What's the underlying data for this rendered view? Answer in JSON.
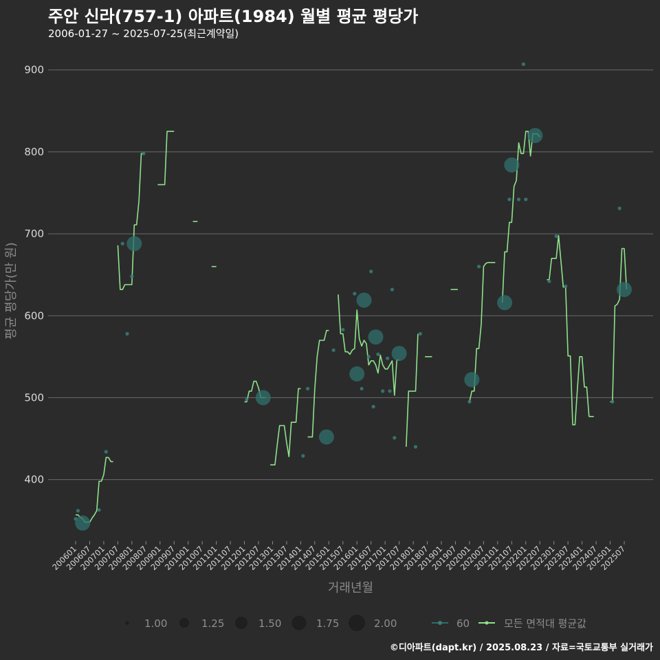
{
  "header": {
    "title": "주안 신라(757-1) 아파트(1984) 월별 평균 평당가",
    "subtitle": "2006-01-27 ~ 2025-07-25(최근계약일)"
  },
  "footer": {
    "credit": "©디아파트(dapt.kr) / 2025.08.23 / 자료=국토교통부 실거래가"
  },
  "colors": {
    "background": "#2b2b2c",
    "grid": "#6b6b6b",
    "line": "#8fe28a",
    "bubble": "#2f6e6a",
    "point": "#3b7d78"
  },
  "chart_data": {
    "type": "line",
    "title": "주안 신라(757-1) 아파트(1984) 월별 평균 평당가",
    "xlabel": "거래년월",
    "ylabel": "평균 평당가(만 원)",
    "ylim": [
      325,
      935
    ],
    "y_ticks": [
      400,
      500,
      600,
      700,
      800,
      900
    ],
    "x_ticks": [
      "200601",
      "200607",
      "200701",
      "200707",
      "200801",
      "200807",
      "200901",
      "200907",
      "201001",
      "201007",
      "201101",
      "201107",
      "201201",
      "201207",
      "201301",
      "201307",
      "201401",
      "201407",
      "201501",
      "201507",
      "201601",
      "201607",
      "201701",
      "201707",
      "201801",
      "201807",
      "201901",
      "201907",
      "202001",
      "202007",
      "202101",
      "202107",
      "202201",
      "202207",
      "202301",
      "202307",
      "202401",
      "202407",
      "202501",
      "202507"
    ],
    "size_legend": {
      "title": "",
      "entries": [
        "1.00",
        "1.25",
        "1.50",
        "1.75",
        "2.00"
      ]
    },
    "series": [
      {
        "name": "60",
        "kind": "bubble",
        "points": [
          {
            "x": "200601",
            "y": 352,
            "n": 1
          },
          {
            "x": "200602",
            "y": 362,
            "n": 1
          },
          {
            "x": "200604",
            "y": 347,
            "n": 2
          },
          {
            "x": "200611",
            "y": 363,
            "n": 1
          },
          {
            "x": "200702",
            "y": 434,
            "n": 1
          },
          {
            "x": "200709",
            "y": 688,
            "n": 1
          },
          {
            "x": "200711",
            "y": 578,
            "n": 1
          },
          {
            "x": "200801",
            "y": 648,
            "n": 1
          },
          {
            "x": "200802",
            "y": 688,
            "n": 2
          },
          {
            "x": "200806",
            "y": 798,
            "n": 1
          },
          {
            "x": "201202",
            "y": 498,
            "n": 1
          },
          {
            "x": "201209",
            "y": 500,
            "n": 2
          },
          {
            "x": "201402",
            "y": 429,
            "n": 1
          },
          {
            "x": "201404",
            "y": 511,
            "n": 1
          },
          {
            "x": "201412",
            "y": 452,
            "n": 2
          },
          {
            "x": "201503",
            "y": 558,
            "n": 1
          },
          {
            "x": "201507",
            "y": 583,
            "n": 1
          },
          {
            "x": "201512",
            "y": 627,
            "n": 1
          },
          {
            "x": "201601",
            "y": 529,
            "n": 2
          },
          {
            "x": "201603",
            "y": 511,
            "n": 1
          },
          {
            "x": "201604",
            "y": 619,
            "n": 2
          },
          {
            "x": "201606",
            "y": 550,
            "n": 1
          },
          {
            "x": "201607",
            "y": 654,
            "n": 1
          },
          {
            "x": "201608",
            "y": 489,
            "n": 1
          },
          {
            "x": "201609",
            "y": 574,
            "n": 2
          },
          {
            "x": "201610",
            "y": 553,
            "n": 1
          },
          {
            "x": "201612",
            "y": 508,
            "n": 1
          },
          {
            "x": "201702",
            "y": 548,
            "n": 1
          },
          {
            "x": "201703",
            "y": 508,
            "n": 1
          },
          {
            "x": "201704",
            "y": 632,
            "n": 1
          },
          {
            "x": "201705",
            "y": 451,
            "n": 1
          },
          {
            "x": "201707",
            "y": 554,
            "n": 2
          },
          {
            "x": "201802",
            "y": 440,
            "n": 1
          },
          {
            "x": "201804",
            "y": 578,
            "n": 1
          },
          {
            "x": "202001",
            "y": 495,
            "n": 1
          },
          {
            "x": "202002",
            "y": 522,
            "n": 2
          },
          {
            "x": "202005",
            "y": 660,
            "n": 1
          },
          {
            "x": "202104",
            "y": 616,
            "n": 2
          },
          {
            "x": "202106",
            "y": 742,
            "n": 1
          },
          {
            "x": "202107",
            "y": 784,
            "n": 2
          },
          {
            "x": "202110",
            "y": 742,
            "n": 1
          },
          {
            "x": "202112",
            "y": 907,
            "n": 1
          },
          {
            "x": "202201",
            "y": 742,
            "n": 1
          },
          {
            "x": "202205",
            "y": 820,
            "n": 2
          },
          {
            "x": "202211",
            "y": 642,
            "n": 1
          },
          {
            "x": "202302",
            "y": 697,
            "n": 1
          },
          {
            "x": "202306",
            "y": 636,
            "n": 1
          },
          {
            "x": "202502",
            "y": 495,
            "n": 1
          },
          {
            "x": "202505",
            "y": 731,
            "n": 1
          },
          {
            "x": "202507",
            "y": 632,
            "n": 2
          }
        ]
      },
      {
        "name": "모든 면적대 평균값",
        "kind": "line",
        "segments": [
          [
            [
              "200601",
              357
            ],
            [
              "200602",
              357
            ],
            [
              "200603",
              354
            ],
            [
              "200604",
              352
            ],
            [
              "200605",
              348
            ],
            [
              "200606",
              348
            ],
            [
              "200607",
              348
            ],
            [
              "200608",
              353
            ],
            [
              "200609",
              357
            ],
            [
              "200610",
              362
            ],
            [
              "200611",
              398
            ],
            [
              "200612",
              398
            ],
            [
              "200701",
              406
            ],
            [
              "200702",
              427
            ],
            [
              "200703",
              427
            ],
            [
              "200704",
              422
            ],
            [
              "200705",
              422
            ]
          ],
          [
            [
              "200707",
              686
            ],
            [
              "200708",
              632
            ],
            [
              "200709",
              632
            ],
            [
              "200710",
              638
            ],
            [
              "200711",
              638
            ],
            [
              "200712",
              638
            ],
            [
              "200801",
              638
            ],
            [
              "200802",
              711
            ],
            [
              "200803",
              711
            ],
            [
              "200804",
              740
            ],
            [
              "200805",
              798
            ],
            [
              "200806",
              798
            ]
          ],
          [
            [
              "200812",
              760
            ],
            [
              "200901",
              760
            ],
            [
              "200902",
              760
            ],
            [
              "200903",
              760
            ],
            [
              "200904",
              825
            ],
            [
              "200905",
              825
            ],
            [
              "200906",
              825
            ],
            [
              "200907",
              825
            ]
          ],
          [
            [
              "201003",
              715
            ],
            [
              "201004",
              715
            ],
            [
              "201005",
              715
            ]
          ],
          [
            [
              "201011",
              660
            ],
            [
              "201012",
              660
            ],
            [
              "201101",
              660
            ]
          ],
          [
            [
              "201201",
              495
            ],
            [
              "201202",
              495
            ],
            [
              "201203",
              508
            ],
            [
              "201204",
              508
            ],
            [
              "201205",
              520
            ],
            [
              "201206",
              520
            ],
            [
              "201207",
              512
            ],
            [
              "201208",
              500
            ],
            [
              "201209",
              500
            ],
            [
              "201210",
              500
            ]
          ],
          [
            [
              "201212",
              418
            ],
            [
              "201301",
              418
            ],
            [
              "201302",
              418
            ],
            [
              "201303",
              443
            ],
            [
              "201304",
              466
            ],
            [
              "201305",
              466
            ],
            [
              "201306",
              466
            ],
            [
              "201307",
              445
            ],
            [
              "201308",
              428
            ],
            [
              "201309",
              470
            ],
            [
              "201310",
              470
            ],
            [
              "201311",
              470
            ],
            [
              "201312",
              511
            ],
            [
              "201401",
              511
            ]
          ],
          [
            [
              "201404",
              452
            ],
            [
              "201405",
              452
            ],
            [
              "201406",
              452
            ],
            [
              "201407",
              510
            ],
            [
              "201408",
              550
            ],
            [
              "201409",
              570
            ],
            [
              "201410",
              570
            ],
            [
              "201411",
              570
            ],
            [
              "201412",
              582
            ],
            [
              "201501",
              582
            ]
          ],
          [
            [
              "201505",
              626
            ],
            [
              "201506",
              578
            ],
            [
              "201507",
              578
            ],
            [
              "201508",
              556
            ],
            [
              "201509",
              556
            ],
            [
              "201510",
              553
            ],
            [
              "201511",
              558
            ],
            [
              "201512",
              560
            ],
            [
              "201601",
              607
            ],
            [
              "201602",
              572
            ],
            [
              "201603",
              563
            ],
            [
              "201604",
              570
            ],
            [
              "201605",
              566
            ],
            [
              "201606",
              540
            ],
            [
              "201607",
              545
            ],
            [
              "201608",
              545
            ],
            [
              "201609",
              540
            ],
            [
              "201610",
              530
            ],
            [
              "201611",
              552
            ],
            [
              "201612",
              540
            ],
            [
              "201701",
              535
            ],
            [
              "201702",
              535
            ],
            [
              "201703",
              540
            ],
            [
              "201704",
              545
            ],
            [
              "201705",
              503
            ],
            [
              "201706",
              546
            ],
            [
              "201707",
              546
            ]
          ],
          [
            [
              "201710",
              440
            ],
            [
              "201711",
              508
            ],
            [
              "201712",
              508
            ],
            [
              "201801",
              508
            ],
            [
              "201802",
              508
            ],
            [
              "201803",
              578
            ]
          ],
          [
            [
              "201806",
              550
            ],
            [
              "201807",
              550
            ],
            [
              "201808",
              550
            ],
            [
              "201809",
              550
            ]
          ],
          [
            [
              "201905",
              632
            ],
            [
              "201906",
              632
            ],
            [
              "201907",
              632
            ],
            [
              "201908",
              632
            ]
          ],
          [
            [
              "202001",
              495
            ],
            [
              "202002",
              508
            ],
            [
              "202003",
              508
            ],
            [
              "202004",
              560
            ],
            [
              "202005",
              560
            ],
            [
              "202006",
              590
            ],
            [
              "202007",
              660
            ],
            [
              "202008",
              664
            ],
            [
              "202009",
              665
            ],
            [
              "202010",
              665
            ],
            [
              "202011",
              665
            ],
            [
              "202012",
              665
            ]
          ],
          [
            [
              "202103",
              616
            ],
            [
              "202104",
              678
            ],
            [
              "202105",
              678
            ],
            [
              "202106",
              714
            ],
            [
              "202107",
              714
            ],
            [
              "202108",
              758
            ],
            [
              "202109",
              765
            ],
            [
              "202110",
              811
            ],
            [
              "202111",
              798
            ],
            [
              "202112",
              798
            ],
            [
              "202201",
              825
            ],
            [
              "202202",
              825
            ],
            [
              "202203",
              795
            ],
            [
              "202204",
              822
            ],
            [
              "202205",
              822
            ],
            [
              "202206",
              822
            ],
            [
              "202207",
              818
            ]
          ],
          [
            [
              "202210",
              644
            ],
            [
              "202211",
              644
            ],
            [
              "202212",
              670
            ],
            [
              "202301",
              670
            ],
            [
              "202302",
              670
            ],
            [
              "202303",
              698
            ],
            [
              "202304",
              667
            ],
            [
              "202305",
              635
            ],
            [
              "202306",
              635
            ],
            [
              "202307",
              551
            ],
            [
              "202308",
              551
            ],
            [
              "202309",
              467
            ],
            [
              "202310",
              467
            ],
            [
              "202311",
              510
            ],
            [
              "202312",
              550
            ],
            [
              "202401",
              550
            ],
            [
              "202402",
              513
            ],
            [
              "202403",
              513
            ],
            [
              "202404",
              477
            ],
            [
              "202405",
              477
            ],
            [
              "202406",
              477
            ]
          ],
          [
            [
              "202501",
              495
            ],
            [
              "202502",
              495
            ],
            [
              "202503",
              612
            ],
            [
              "202504",
              614
            ],
            [
              "202505",
              620
            ],
            [
              "202506",
              682
            ],
            [
              "202507",
              682
            ],
            [
              "202508",
              632
            ]
          ]
        ]
      }
    ]
  }
}
